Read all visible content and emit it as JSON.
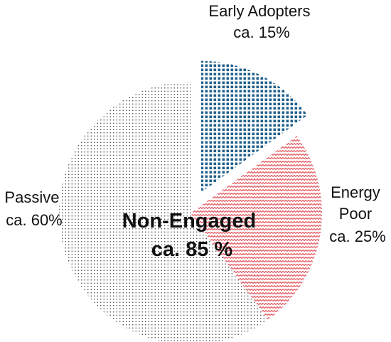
{
  "chart_data": {
    "type": "pie",
    "slices": [
      {
        "key": "early",
        "label_lines": [
          "Early Adopters",
          "ca. 15%"
        ],
        "value": 15,
        "color": "#1f5f8b",
        "pattern": "grid"
      },
      {
        "key": "poor",
        "label_lines": [
          "Energy",
          "Poor",
          "ca. 25%"
        ],
        "value": 25,
        "color": "#e0434a",
        "pattern": "zigzag"
      },
      {
        "key": "passive",
        "label_lines": [
          "Passive",
          "ca. 60%"
        ],
        "value": 60,
        "color": "#333333",
        "pattern": "dots"
      }
    ],
    "exploded_slice": "early",
    "group_label": {
      "lines": [
        "Non-Engaged",
        "ca. 85 %"
      ],
      "covers": [
        "poor",
        "passive"
      ]
    },
    "legend": "none"
  }
}
